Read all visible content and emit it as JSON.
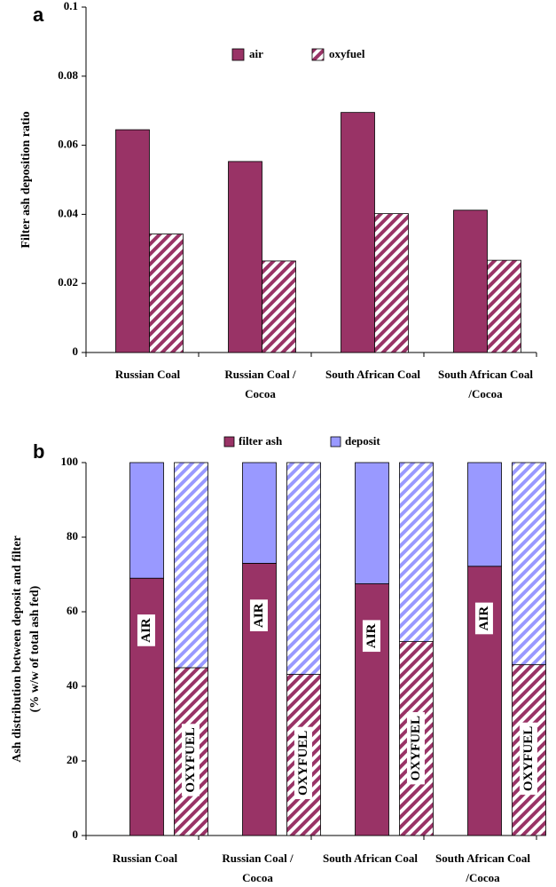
{
  "chart_data": [
    {
      "type": "bar",
      "panel_label": "a",
      "ylabel": "Filter ash deposition ratio",
      "categories": [
        "Russian Coal",
        "Russian Coal / Cocoa",
        "South African Coal",
        "South African Coal /Cocoa"
      ],
      "series": [
        {
          "name": "air",
          "color": "#993366",
          "pattern": "solid",
          "values": [
            0.0645,
            0.0553,
            0.0695,
            0.0412
          ]
        },
        {
          "name": "oxyfuel",
          "color": "#993366",
          "pattern": "hatch",
          "values": [
            0.0343,
            0.0265,
            0.0402,
            0.0267
          ]
        }
      ],
      "ylim": [
        0,
        0.1
      ],
      "yticks": [
        0,
        0.02,
        0.04,
        0.06,
        0.08,
        0.1
      ]
    },
    {
      "type": "stacked_bar",
      "panel_label": "b",
      "ylabel": [
        "Ash distribution between deposit and filter",
        "(% w/w of total ash fed)"
      ],
      "categories": [
        "Russian Coal",
        "Russian Coal / Cocoa",
        "South African Coal",
        "South African Coal /Cocoa"
      ],
      "series": [
        {
          "name": "filter ash",
          "color": "#993366"
        },
        {
          "name": "deposit",
          "color": "#9999ff"
        }
      ],
      "groups": [
        {
          "label": "AIR",
          "pattern": "solid",
          "values": [
            [
              69,
              73,
              67.5,
              72.2
            ],
            [
              31,
              27,
              32.5,
              27.8
            ]
          ]
        },
        {
          "label": "OXYFUEL",
          "pattern": "hatch",
          "values": [
            [
              45,
              43.2,
              52,
              45.8
            ],
            [
              55,
              56.8,
              48,
              54.2
            ]
          ]
        }
      ],
      "ylim": [
        0,
        100
      ],
      "yticks": [
        0,
        20,
        40,
        60,
        80,
        100
      ]
    }
  ]
}
